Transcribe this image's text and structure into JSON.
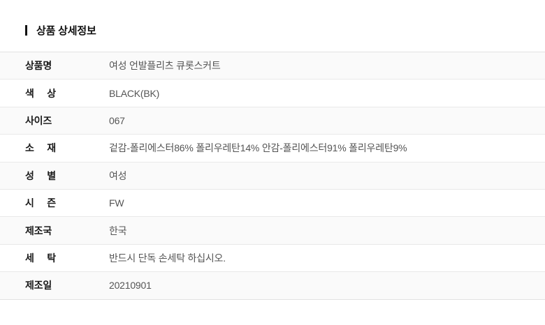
{
  "header": {
    "title": "상품 상세정보"
  },
  "table": {
    "rows": [
      {
        "label": "상품명",
        "value": "여성 언발플리츠 큐롯스커트"
      },
      {
        "label": "색 상",
        "value": "BLACK(BK)"
      },
      {
        "label": "사이즈",
        "value": "067"
      },
      {
        "label": "소 재",
        "value": "겉감-폴리에스터86% 폴리우레탄14% 안감-폴리에스터91% 폴리우레탄9%"
      },
      {
        "label": "성 별",
        "value": "여성"
      },
      {
        "label": "시 즌",
        "value": "FW"
      },
      {
        "label": "제조국",
        "value": "한국"
      },
      {
        "label": "세 탁",
        "value": "반드시 단독 손세탁 하십시오."
      },
      {
        "label": "제조일",
        "value": "20210901"
      }
    ]
  },
  "colors": {
    "accent_bar": "#111111",
    "row_alt_background": "#fafafa",
    "divider": "#e9e9e9",
    "label_text": "#1a1a1a",
    "value_text": "#555555"
  }
}
